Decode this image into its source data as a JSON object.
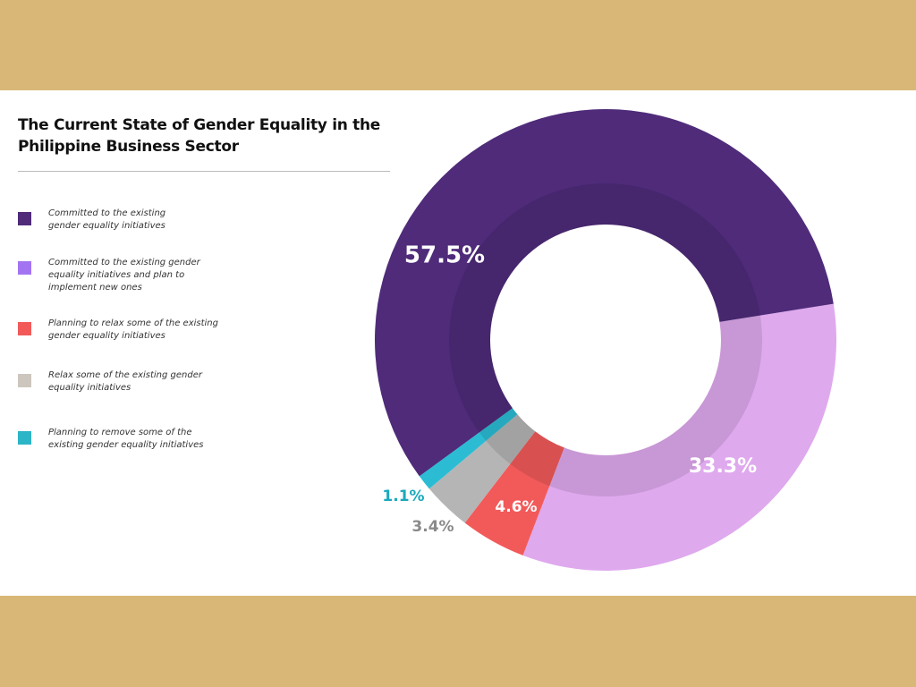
{
  "chart_data": {
    "type": "pie",
    "variant": "donut",
    "title": "The Current State of Gender Equality in the Philippine Business Sector",
    "legend_position": "left",
    "series": [
      {
        "name": "Committed to the existing gender equality initiatives",
        "value": 57.5,
        "label": "57.5%",
        "color": "#4f2b7a",
        "legend_color": "#4f2b7a",
        "label_color": "#ffffff"
      },
      {
        "name": "Committed to the existing gender equality initiatives and plan to implement new ones",
        "value": 33.3,
        "label": "33.3%",
        "color": "#dfa9ee",
        "legend_color": "#a374f2",
        "label_color": "#ffffff"
      },
      {
        "name": "Planning to relax some of the existing gender equality initiatives",
        "value": 4.6,
        "label": "4.6%",
        "color": "#f25a5a",
        "legend_color": "#f25a5a",
        "label_color": "#ffffff"
      },
      {
        "name": "Relax some of the existing gender equality initiatives",
        "value": 3.4,
        "label": "3.4%",
        "color": "#b5b5b5",
        "legend_color": "#cdc6be",
        "label_color": "#8a8a8a"
      },
      {
        "name": "Planning to remove some of the existing gender equality initiatives",
        "value": 1.1,
        "label": "1.1%",
        "color": "#2bbcd4",
        "legend_color": "#2bb5c6",
        "label_color": "#1aa9bd"
      }
    ]
  },
  "background_color": "#d9b877"
}
